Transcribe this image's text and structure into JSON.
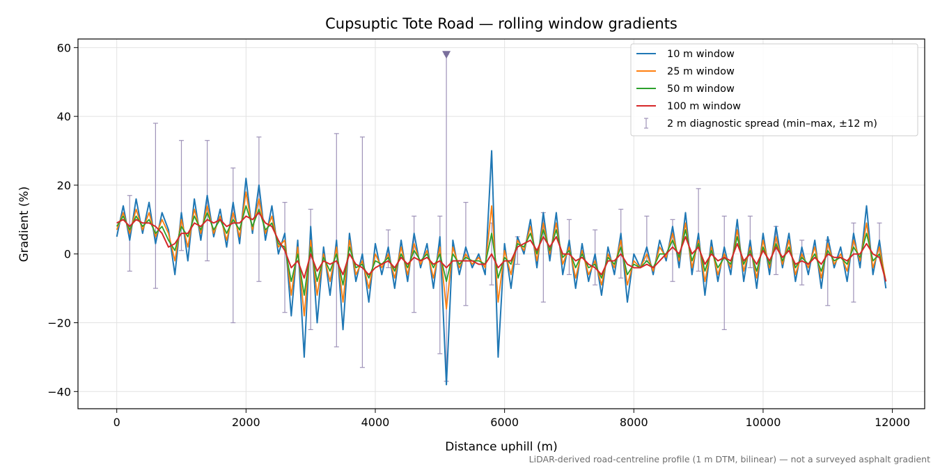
{
  "chart_data": {
    "type": "line",
    "title": "Cupsuptic Tote Road — rolling window gradients",
    "xlabel": "Distance uphill (m)",
    "ylabel": "Gradient (%)",
    "xlim": [
      -600,
      12500
    ],
    "ylim": [
      -45,
      62.5
    ],
    "x_ticks": [
      0,
      2000,
      4000,
      6000,
      8000,
      10000,
      12000
    ],
    "x_tick_labels": [
      "0",
      "2000",
      "4000",
      "6000",
      "8000",
      "10000",
      "12000"
    ],
    "y_ticks": [
      -40,
      -20,
      0,
      20,
      40,
      60
    ],
    "y_tick_labels": [
      "−40",
      "−20",
      "0",
      "20",
      "40",
      "60"
    ],
    "grid": true,
    "legend_position": "top-right",
    "footnote": "LiDAR-derived road-centreline profile (1 m DTM, bilinear) — not a surveyed asphalt gradient",
    "x": [
      0,
      100,
      200,
      300,
      400,
      500,
      600,
      700,
      800,
      900,
      1000,
      1100,
      1200,
      1300,
      1400,
      1500,
      1600,
      1700,
      1800,
      1900,
      2000,
      2100,
      2200,
      2300,
      2400,
      2500,
      2600,
      2700,
      2800,
      2900,
      3000,
      3100,
      3200,
      3300,
      3400,
      3500,
      3600,
      3700,
      3800,
      3900,
      4000,
      4100,
      4200,
      4300,
      4400,
      4500,
      4600,
      4700,
      4800,
      4900,
      5000,
      5100,
      5200,
      5300,
      5400,
      5500,
      5600,
      5700,
      5800,
      5900,
      6000,
      6100,
      6200,
      6300,
      6400,
      6500,
      6600,
      6700,
      6800,
      6900,
      7000,
      7100,
      7200,
      7300,
      7400,
      7500,
      7600,
      7700,
      7800,
      7900,
      8000,
      8100,
      8200,
      8300,
      8400,
      8500,
      8600,
      8700,
      8800,
      8900,
      9000,
      9100,
      9200,
      9300,
      9400,
      9500,
      9600,
      9700,
      9800,
      9900,
      10000,
      10100,
      10200,
      10300,
      10400,
      10500,
      10600,
      10700,
      10800,
      10900,
      11000,
      11100,
      11200,
      11300,
      11400,
      11500,
      11600,
      11700,
      11800,
      11900
    ],
    "series": [
      {
        "name": "10 m window",
        "color": "#1f77b4",
        "values": [
          5,
          14,
          4,
          16,
          6,
          15,
          3,
          12,
          7,
          -6,
          12,
          -2,
          16,
          4,
          17,
          5,
          13,
          2,
          15,
          3,
          22,
          6,
          20,
          4,
          14,
          0,
          6,
          -18,
          4,
          -30,
          8,
          -20,
          2,
          -12,
          4,
          -22,
          6,
          -8,
          0,
          -14,
          3,
          -6,
          2,
          -10,
          4,
          -8,
          6,
          -4,
          3,
          -10,
          5,
          -38,
          4,
          -6,
          2,
          -4,
          0,
          -6,
          30,
          -30,
          3,
          -10,
          5,
          0,
          10,
          -4,
          12,
          -2,
          12,
          -6,
          4,
          -10,
          3,
          -8,
          0,
          -12,
          2,
          -6,
          6,
          -14,
          0,
          -4,
          2,
          -6,
          4,
          -2,
          8,
          -4,
          12,
          -6,
          6,
          -12,
          4,
          -8,
          2,
          -6,
          10,
          -8,
          4,
          -10,
          6,
          -6,
          8,
          -4,
          6,
          -8,
          2,
          -6,
          4,
          -10,
          5,
          -4,
          2,
          -8,
          6,
          -4,
          14,
          -6,
          4,
          -10
        ]
      },
      {
        "name": "25 m window",
        "color": "#ff7f0e",
        "values": [
          7,
          12,
          6,
          13,
          7,
          12,
          5,
          10,
          6,
          -2,
          10,
          2,
          13,
          6,
          14,
          6,
          11,
          4,
          12,
          5,
          18,
          7,
          16,
          6,
          11,
          2,
          4,
          -12,
          2,
          -18,
          4,
          -12,
          0,
          -8,
          2,
          -14,
          4,
          -6,
          -2,
          -10,
          0,
          -4,
          0,
          -7,
          2,
          -6,
          3,
          -3,
          1,
          -7,
          2,
          -16,
          2,
          -4,
          0,
          -3,
          -1,
          -4,
          14,
          -14,
          1,
          -6,
          4,
          1,
          8,
          -2,
          9,
          0,
          9,
          -3,
          2,
          -7,
          1,
          -6,
          -2,
          -9,
          0,
          -4,
          4,
          -9,
          -2,
          -4,
          0,
          -5,
          2,
          -1,
          6,
          -2,
          9,
          -4,
          4,
          -8,
          2,
          -6,
          0,
          -4,
          7,
          -5,
          2,
          -7,
          4,
          -4,
          5,
          -3,
          4,
          -6,
          0,
          -4,
          2,
          -7,
          3,
          -3,
          0,
          -5,
          4,
          -2,
          9,
          -4,
          2,
          -8
        ]
      },
      {
        "name": "50 m window",
        "color": "#2ca02c",
        "values": [
          8,
          11,
          7,
          11,
          8,
          10,
          6,
          8,
          4,
          1,
          8,
          5,
          11,
          7,
          12,
          7,
          10,
          6,
          10,
          7,
          14,
          8,
          13,
          7,
          9,
          3,
          2,
          -8,
          0,
          -12,
          2,
          -8,
          -1,
          -5,
          0,
          -9,
          2,
          -4,
          -3,
          -7,
          -2,
          -3,
          -1,
          -5,
          0,
          -4,
          1,
          -2,
          0,
          -4,
          0,
          -8,
          0,
          -3,
          -1,
          -2,
          -2,
          -3,
          6,
          -7,
          -1,
          -3,
          3,
          2,
          6,
          0,
          7,
          1,
          7,
          -1,
          1,
          -4,
          0,
          -4,
          -3,
          -7,
          -1,
          -3,
          2,
          -6,
          -3,
          -4,
          -2,
          -4,
          0,
          0,
          4,
          -1,
          7,
          -2,
          3,
          -5,
          1,
          -4,
          -1,
          -3,
          5,
          -3,
          1,
          -5,
          2,
          -3,
          3,
          -2,
          2,
          -4,
          -1,
          -3,
          0,
          -5,
          1,
          -2,
          -1,
          -3,
          2,
          -1,
          6,
          -2,
          0,
          -8
        ]
      },
      {
        "name": "100 m window",
        "color": "#d62728",
        "values": [
          9,
          10,
          8,
          10,
          9,
          9,
          8,
          6,
          2,
          3,
          6,
          6,
          9,
          8,
          10,
          9,
          10,
          8,
          9,
          9,
          11,
          10,
          12,
          9,
          8,
          4,
          1,
          -4,
          -2,
          -7,
          0,
          -5,
          -2,
          -3,
          -2,
          -6,
          0,
          -3,
          -4,
          -6,
          -4,
          -3,
          -2,
          -4,
          -1,
          -3,
          -1,
          -2,
          -1,
          -3,
          -2,
          -4,
          -2,
          -2,
          -2,
          -2,
          -3,
          -3,
          0,
          -4,
          -2,
          -2,
          2,
          3,
          4,
          1,
          5,
          2,
          5,
          0,
          0,
          -2,
          -1,
          -3,
          -4,
          -6,
          -2,
          -2,
          0,
          -3,
          -4,
          -4,
          -3,
          -4,
          -2,
          0,
          2,
          0,
          5,
          0,
          2,
          -3,
          0,
          -2,
          -1,
          -2,
          3,
          -2,
          0,
          -3,
          1,
          -2,
          2,
          -1,
          1,
          -3,
          -2,
          -3,
          -1,
          -3,
          0,
          -1,
          -1,
          -2,
          0,
          0,
          3,
          0,
          -1,
          -8
        ]
      }
    ],
    "diagnostic_spread": {
      "name": "2 m diagnostic spread (min–max, ±12 m)",
      "color": "#9e92b8",
      "points": [
        {
          "x": 200,
          "low": -5,
          "high": 17
        },
        {
          "x": 600,
          "low": -10,
          "high": 38
        },
        {
          "x": 1000,
          "low": 1,
          "high": 33
        },
        {
          "x": 1400,
          "low": -2,
          "high": 33
        },
        {
          "x": 1800,
          "low": -20,
          "high": 25
        },
        {
          "x": 2200,
          "low": -8,
          "high": 34
        },
        {
          "x": 2600,
          "low": -17,
          "high": 15
        },
        {
          "x": 3000,
          "low": -22,
          "high": 13
        },
        {
          "x": 3400,
          "low": -27,
          "high": 35
        },
        {
          "x": 3800,
          "low": -33,
          "high": 34
        },
        {
          "x": 4200,
          "low": -4,
          "high": 7
        },
        {
          "x": 4600,
          "low": -17,
          "high": 11
        },
        {
          "x": 5000,
          "low": -29,
          "high": 11
        },
        {
          "x": 5100,
          "low": -37,
          "high": 58
        },
        {
          "x": 5400,
          "low": -15,
          "high": 15
        },
        {
          "x": 5800,
          "low": -9,
          "high": 9
        },
        {
          "x": 6200,
          "low": -3,
          "high": 5
        },
        {
          "x": 6600,
          "low": -14,
          "high": 12
        },
        {
          "x": 7000,
          "low": -6,
          "high": 10
        },
        {
          "x": 7400,
          "low": -9,
          "high": 7
        },
        {
          "x": 7800,
          "low": -7,
          "high": 13
        },
        {
          "x": 8200,
          "low": -2,
          "high": 11
        },
        {
          "x": 8600,
          "low": -8,
          "high": 10
        },
        {
          "x": 9000,
          "low": -5,
          "high": 19
        },
        {
          "x": 9400,
          "low": -22,
          "high": 11
        },
        {
          "x": 9800,
          "low": -4,
          "high": 11
        },
        {
          "x": 10200,
          "low": -6,
          "high": 8
        },
        {
          "x": 10600,
          "low": -9,
          "high": 4
        },
        {
          "x": 11000,
          "low": -15,
          "high": 4
        },
        {
          "x": 11400,
          "low": -14,
          "high": 9
        },
        {
          "x": 11800,
          "low": -1,
          "high": 9
        }
      ],
      "outlier_marker": {
        "x": 5100,
        "y": 58
      }
    }
  }
}
